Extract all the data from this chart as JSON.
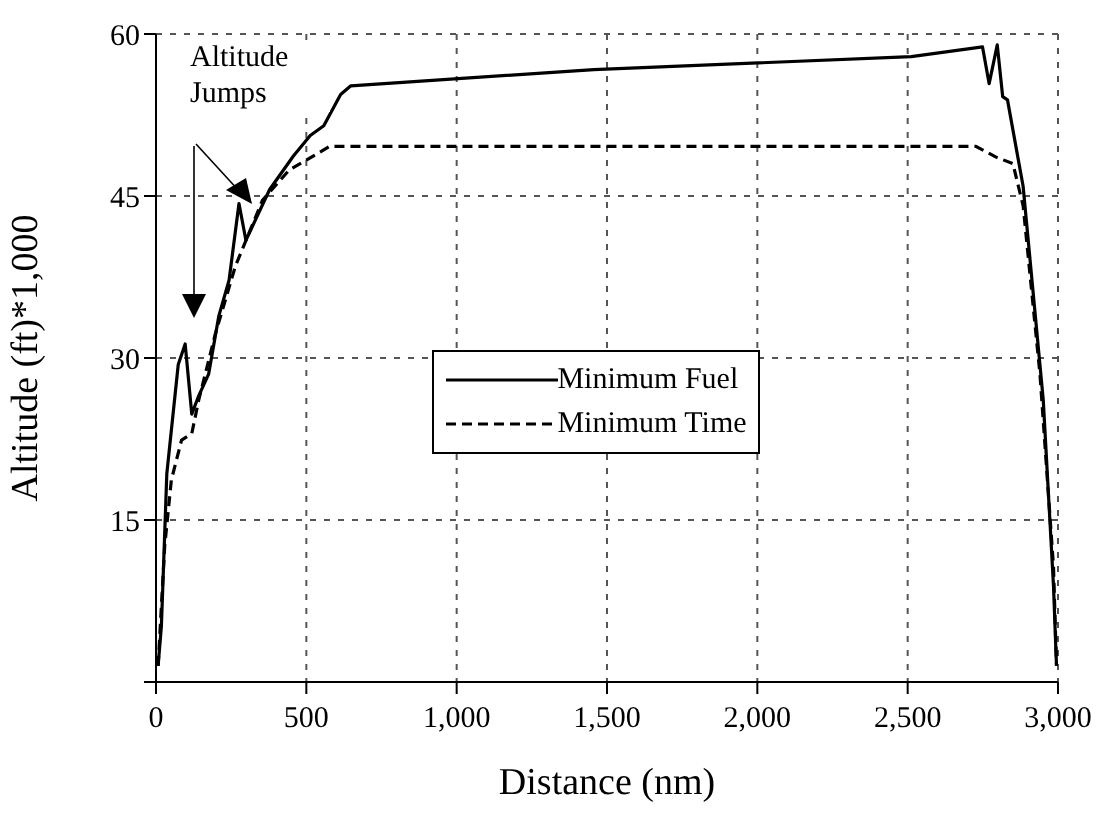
{
  "chart_data": {
    "type": "line",
    "xlabel": "Distance (nm)",
    "ylabel": "Altitude (ft)*1,000",
    "xlim": [
      0,
      3000
    ],
    "xticks": [
      0,
      500,
      {
        "value": 1000,
        "label": "1,000"
      },
      {
        "value": 1500,
        "label": "1,500"
      },
      {
        "value": 2000,
        "label": "2,000"
      },
      {
        "value": 2500,
        "label": "2,500"
      },
      {
        "value": 3000,
        "label": "3,000"
      }
    ],
    "ylim": [
      0,
      60
    ],
    "yticks": [
      {
        "value": 0,
        "label": null
      },
      15,
      30,
      45,
      60
    ],
    "grid": true,
    "legend": "center",
    "marker": "none",
    "annotations": [
      "Altitude Jumps"
    ],
    "series": [
      {
        "name": "Minimum Fuel",
        "color": "#000000",
        "line_style": "solid",
        "x": [
          7,
          18,
          36,
          74,
          97,
          119,
          142,
          175,
          209,
          243,
          276,
          299,
          378,
          457,
          513,
          558,
          614,
          648,
          1456,
          2512,
          2749,
          2771,
          2798,
          2816,
          2832,
          2884,
          2951,
          2985,
          2995
        ],
        "values": [
          1.5,
          5.2,
          19.3,
          29.4,
          31.3,
          24.8,
          26.5,
          28.5,
          33.9,
          37.2,
          44.3,
          40.9,
          45.6,
          48.7,
          50.6,
          51.5,
          54.4,
          55.2,
          56.7,
          57.9,
          58.8,
          55.4,
          59.0,
          54.2,
          53.9,
          45.9,
          26.1,
          8.9,
          1.5
        ]
      },
      {
        "name": "Minimum Time",
        "color": "#000000",
        "line_style": "dashed",
        "x": [
          7,
          29,
          51,
          85,
          119,
          142,
          197,
          264,
          354,
          443,
          499,
          578,
          2727,
          2794,
          2850,
          2884,
          2940,
          2985,
          2995
        ],
        "values": [
          1.5,
          12.6,
          18.7,
          22.4,
          23.0,
          26.1,
          32.2,
          38.5,
          44.6,
          47.4,
          48.3,
          49.6,
          49.6,
          48.6,
          48.0,
          44.1,
          28.5,
          10.7,
          1.5
        ]
      }
    ]
  }
}
